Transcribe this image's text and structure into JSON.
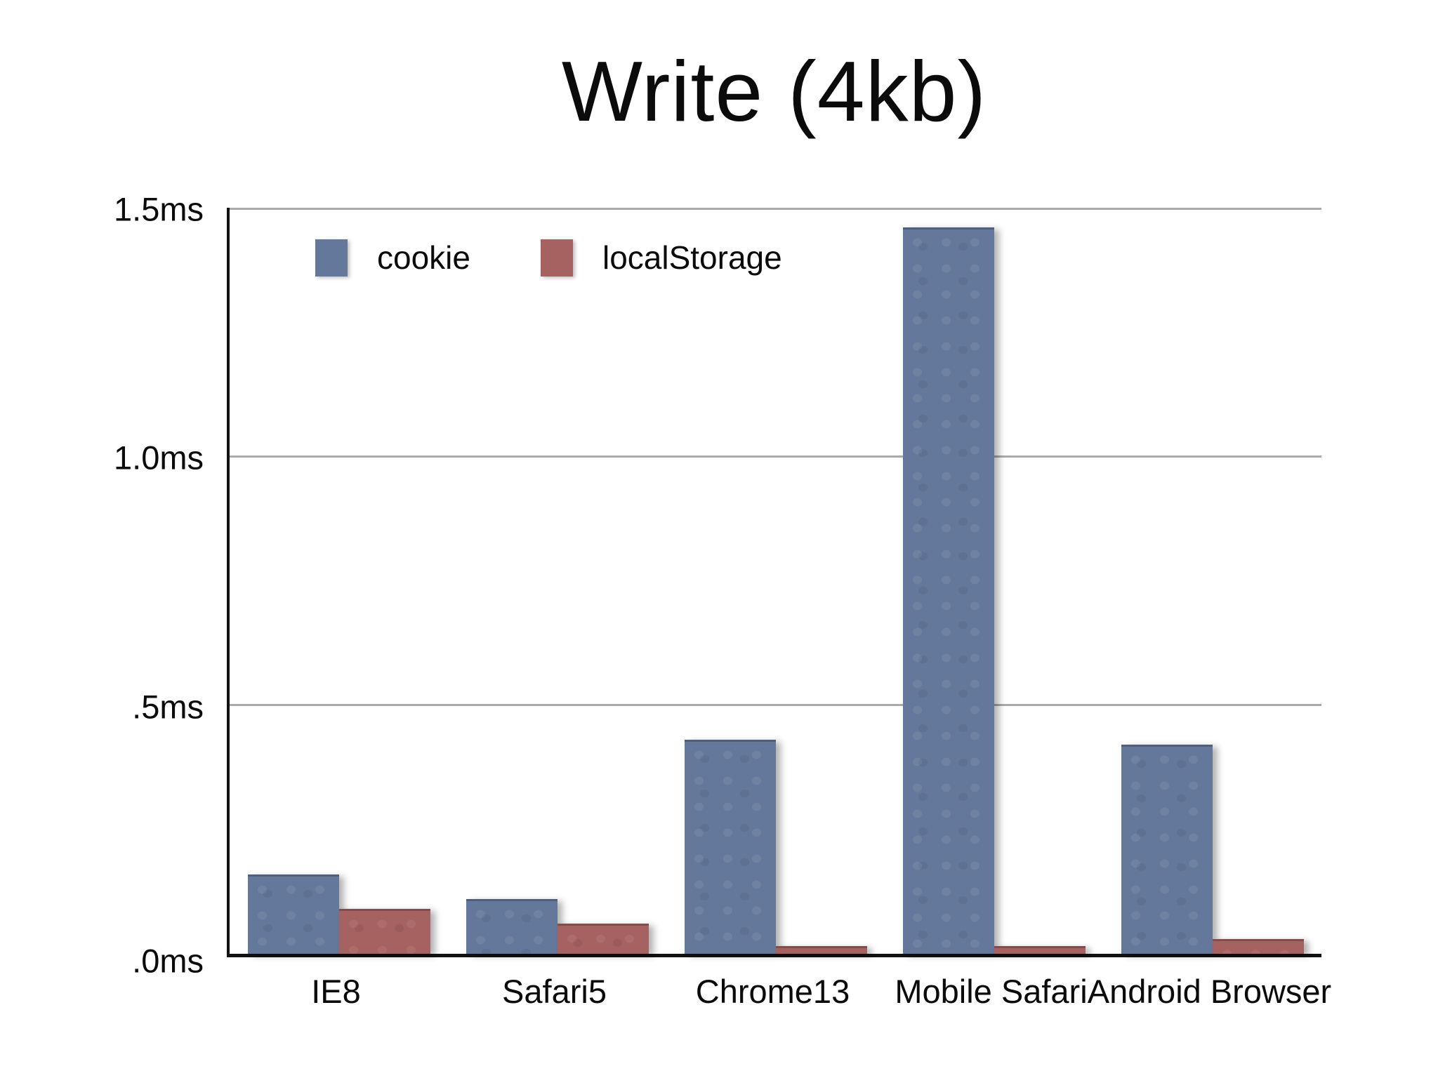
{
  "title": "Write (4kb)",
  "legend": {
    "items": [
      {
        "label": "cookie",
        "color": "#64789b"
      },
      {
        "label": "localStorage",
        "color": "#a66161"
      }
    ]
  },
  "colors": {
    "cookie_bar": "#64789b",
    "localstorage_bar": "#a66161",
    "gridline": "#aaaaaa",
    "axis": "#121212",
    "text": "#0b0b0b",
    "background": "#ffffff"
  },
  "chart_data": {
    "type": "bar",
    "title": "Write (4kb)",
    "categories": [
      "IE8",
      "Safari5",
      "Chrome13",
      "Mobile Safari",
      "Android Browser"
    ],
    "series": [
      {
        "name": "cookie",
        "color": "#64789b",
        "values": [
          0.16,
          0.11,
          0.43,
          1.46,
          0.42
        ]
      },
      {
        "name": "localStorage",
        "color": "#a66161",
        "values": [
          0.09,
          0.06,
          0.015,
          0.015,
          0.03
        ]
      }
    ],
    "unit": "ms",
    "y_ticks": [
      {
        "label": "1.5ms",
        "value": 1.5
      },
      {
        "label": "1.0ms",
        "value": 1.0
      },
      {
        "label": ".5ms",
        "value": 0.5
      },
      {
        "label": ".0ms",
        "value": 0.0
      }
    ],
    "ylim": [
      0,
      1.5
    ],
    "xlabel": "",
    "ylabel": "",
    "grid": "horizontal",
    "legend_position": "top-left-inside"
  }
}
